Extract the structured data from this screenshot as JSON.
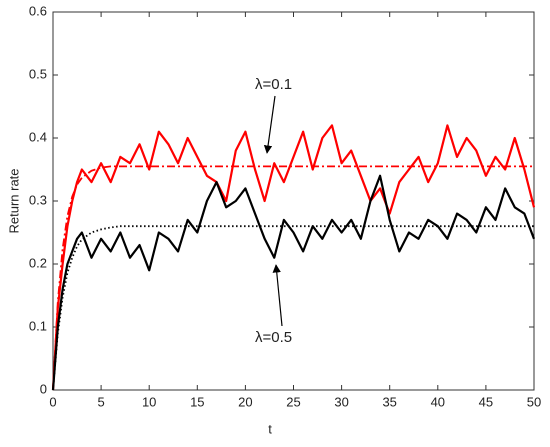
{
  "chart_data": {
    "type": "line",
    "xlabel": "t",
    "ylabel": "Return rate",
    "x": [
      0,
      0.5,
      1,
      1.5,
      2,
      2.5,
      3,
      4,
      5,
      6,
      7,
      8,
      9,
      10,
      11,
      12,
      13,
      14,
      15,
      16,
      17,
      18,
      19,
      20,
      21,
      22,
      23,
      24,
      25,
      26,
      27,
      28,
      29,
      30,
      31,
      32,
      33,
      34,
      35,
      36,
      37,
      38,
      39,
      40,
      41,
      42,
      43,
      44,
      45,
      46,
      47,
      48,
      49,
      50
    ],
    "series": [
      {
        "color": "#ff0000",
        "dash": "solid",
        "values": [
          0,
          0.13,
          0.2,
          0.26,
          0.3,
          0.33,
          0.35,
          0.33,
          0.36,
          0.33,
          0.37,
          0.36,
          0.39,
          0.35,
          0.41,
          0.39,
          0.36,
          0.4,
          0.37,
          0.34,
          0.33,
          0.3,
          0.38,
          0.41,
          0.35,
          0.3,
          0.36,
          0.33,
          0.37,
          0.41,
          0.35,
          0.4,
          0.42,
          0.36,
          0.38,
          0.34,
          0.3,
          0.32,
          0.28,
          0.33,
          0.35,
          0.37,
          0.33,
          0.36,
          0.42,
          0.37,
          0.4,
          0.38,
          0.34,
          0.37,
          0.35,
          0.4,
          0.35,
          0.29
        ]
      },
      {
        "color": "#ff0000",
        "dash": "dashdot",
        "values": [
          0,
          0.14,
          0.224,
          0.276,
          0.307,
          0.326,
          0.337,
          0.348,
          0.353,
          0.355,
          0.355,
          0.355,
          0.355,
          0.355,
          0.355,
          0.355,
          0.355,
          0.355,
          0.355,
          0.355,
          0.355,
          0.355,
          0.355,
          0.355,
          0.355,
          0.355,
          0.355,
          0.355,
          0.355,
          0.355,
          0.355,
          0.355,
          0.355,
          0.355,
          0.355,
          0.355,
          0.355,
          0.355,
          0.355,
          0.355,
          0.355,
          0.355,
          0.355,
          0.355,
          0.355,
          0.355,
          0.355,
          0.355,
          0.355,
          0.355,
          0.355,
          0.355,
          0.355,
          0.355
        ]
      },
      {
        "color": "#000000",
        "dash": "solid",
        "values": [
          0,
          0.1,
          0.16,
          0.2,
          0.22,
          0.24,
          0.25,
          0.21,
          0.24,
          0.22,
          0.25,
          0.21,
          0.23,
          0.19,
          0.25,
          0.24,
          0.22,
          0.27,
          0.25,
          0.3,
          0.33,
          0.29,
          0.3,
          0.32,
          0.28,
          0.24,
          0.21,
          0.27,
          0.25,
          0.22,
          0.26,
          0.24,
          0.27,
          0.25,
          0.27,
          0.24,
          0.3,
          0.34,
          0.27,
          0.22,
          0.25,
          0.24,
          0.27,
          0.26,
          0.24,
          0.28,
          0.27,
          0.25,
          0.29,
          0.27,
          0.32,
          0.29,
          0.28,
          0.24
        ]
      },
      {
        "color": "#000000",
        "dash": "dotted",
        "values": [
          0,
          0.09,
          0.147,
          0.186,
          0.21,
          0.228,
          0.239,
          0.25,
          0.255,
          0.258,
          0.26,
          0.26,
          0.26,
          0.26,
          0.26,
          0.26,
          0.26,
          0.26,
          0.26,
          0.26,
          0.26,
          0.26,
          0.26,
          0.26,
          0.26,
          0.26,
          0.26,
          0.26,
          0.26,
          0.26,
          0.26,
          0.26,
          0.26,
          0.26,
          0.26,
          0.26,
          0.26,
          0.26,
          0.26,
          0.26,
          0.26,
          0.26,
          0.26,
          0.26,
          0.26,
          0.26,
          0.26,
          0.26,
          0.26,
          0.26,
          0.26,
          0.26,
          0.26,
          0.26
        ]
      }
    ],
    "xlim": [
      0,
      50
    ],
    "xticks": [
      0,
      5,
      10,
      15,
      20,
      25,
      30,
      35,
      40,
      45,
      50
    ],
    "ylim": [
      0,
      0.6
    ],
    "yticks": [
      0,
      0.1,
      0.2,
      0.3,
      0.4,
      0.5,
      0.6
    ],
    "grid": false,
    "annotations": [
      {
        "text": "λ=0.1"
      },
      {
        "text": "λ=0.5"
      }
    ]
  }
}
